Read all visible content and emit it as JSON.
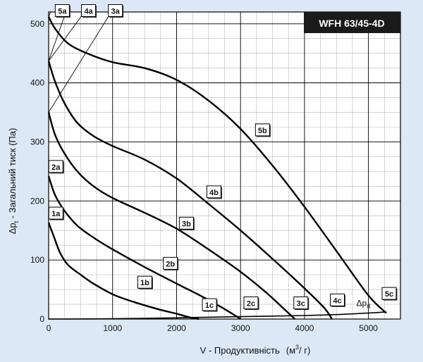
{
  "chart_data": {
    "type": "line",
    "title": "WFH 63/45-4D",
    "xlabel": "V - Продуктивність",
    "xunit_base": "(м",
    "xunit_sup": "3",
    "xunit_tail": "/ г)",
    "ylabel_symbol": "Δp",
    "ylabel_sub": "t",
    "ylabel_text": " - Загальний тиск (Па)",
    "xlim": [
      0,
      5500
    ],
    "ylim": [
      0,
      520
    ],
    "x_ticks": [
      0,
      1000,
      2000,
      3000,
      4000,
      5000
    ],
    "y_ticks": [
      0,
      100,
      200,
      300,
      400,
      500
    ],
    "x_grid_step": 250,
    "y_grid_step": 25,
    "colors": {
      "background": "#dce8f5",
      "plot_bg": "#ffffff",
      "grid_major": "#000000",
      "grid_minor": "#b8b8b8",
      "curve": "#000000",
      "title_bg": "#1a1a1a",
      "title_fg": "#ffffff"
    },
    "series": [
      {
        "name": "1",
        "points": [
          [
            0,
            163
          ],
          [
            80,
            140
          ],
          [
            180,
            112
          ],
          [
            300,
            92
          ],
          [
            500,
            75
          ],
          [
            700,
            60
          ],
          [
            1000,
            42
          ],
          [
            1300,
            30
          ],
          [
            1700,
            17
          ],
          [
            2000,
            9
          ],
          [
            2200,
            3
          ],
          [
            2350,
            0
          ]
        ]
      },
      {
        "name": "2",
        "points": [
          [
            0,
            242
          ],
          [
            100,
            210
          ],
          [
            250,
            183
          ],
          [
            450,
            158
          ],
          [
            700,
            138
          ],
          [
            1000,
            118
          ],
          [
            1500,
            88
          ],
          [
            2000,
            60
          ],
          [
            2400,
            38
          ],
          [
            2700,
            20
          ],
          [
            2900,
            7
          ],
          [
            3000,
            0
          ]
        ]
      },
      {
        "name": "3",
        "points": [
          [
            0,
            350
          ],
          [
            100,
            312
          ],
          [
            250,
            280
          ],
          [
            450,
            250
          ],
          [
            700,
            225
          ],
          [
            1000,
            205
          ],
          [
            1500,
            180
          ],
          [
            2000,
            153
          ],
          [
            2500,
            118
          ],
          [
            3000,
            80
          ],
          [
            3400,
            45
          ],
          [
            3700,
            15
          ],
          [
            3850,
            0
          ]
        ]
      },
      {
        "name": "4",
        "points": [
          [
            0,
            437
          ],
          [
            100,
            402
          ],
          [
            250,
            365
          ],
          [
            450,
            332
          ],
          [
            700,
            310
          ],
          [
            1000,
            293
          ],
          [
            1500,
            270
          ],
          [
            2000,
            238
          ],
          [
            2500,
            195
          ],
          [
            3000,
            150
          ],
          [
            3500,
            102
          ],
          [
            4000,
            52
          ],
          [
            4300,
            20
          ],
          [
            4430,
            0
          ]
        ]
      },
      {
        "name": "5",
        "points": [
          [
            0,
            512
          ],
          [
            100,
            492
          ],
          [
            300,
            467
          ],
          [
            600,
            450
          ],
          [
            1000,
            435
          ],
          [
            1500,
            425
          ],
          [
            2000,
            405
          ],
          [
            2500,
            370
          ],
          [
            3000,
            322
          ],
          [
            3500,
            260
          ],
          [
            4000,
            190
          ],
          [
            4500,
            115
          ],
          [
            5000,
            40
          ],
          [
            5280,
            10
          ]
        ]
      },
      {
        "name": "Δpd",
        "points": [
          [
            0,
            0
          ],
          [
            1000,
            0.5
          ],
          [
            2000,
            2
          ],
          [
            3000,
            4
          ],
          [
            4000,
            6
          ],
          [
            4600,
            8
          ],
          [
            5280,
            12
          ]
        ]
      }
    ],
    "rays": [
      {
        "from": [
          0,
          512
        ],
        "to": [
          30,
          520
        ]
      },
      {
        "from": [
          0,
          437
        ],
        "to": [
          270,
          520
        ]
      },
      {
        "from": [
          0,
          437
        ],
        "to": [
          560,
          520
        ]
      },
      {
        "from": [
          0,
          350
        ],
        "to": [
          980,
          520
        ]
      }
    ],
    "curve_labels": [
      {
        "text": "1a",
        "x": 130,
        "y": 177
      },
      {
        "text": "1b",
        "x": 1520,
        "y": 60
      },
      {
        "text": "1c",
        "x": 2530,
        "y": 22
      },
      {
        "text": "2a",
        "x": 130,
        "y": 256
      },
      {
        "text": "2b",
        "x": 1920,
        "y": 92
      },
      {
        "text": "2c",
        "x": 3180,
        "y": 25
      },
      {
        "text": "3a",
        "x": 1060,
        "y": 520
      },
      {
        "text": "3b",
        "x": 2170,
        "y": 160
      },
      {
        "text": "3c",
        "x": 3960,
        "y": 25
      },
      {
        "text": "4a",
        "x": 640,
        "y": 520
      },
      {
        "text": "4b",
        "x": 2600,
        "y": 213
      },
      {
        "text": "4c",
        "x": 4530,
        "y": 30
      },
      {
        "text": "5a",
        "x": 230,
        "y": 520
      },
      {
        "text": "5b",
        "x": 3360,
        "y": 318
      },
      {
        "text": "5c",
        "x": 5340,
        "y": 41
      }
    ],
    "dpd_label": {
      "symbol": "Δp",
      "sub": "d"
    }
  }
}
